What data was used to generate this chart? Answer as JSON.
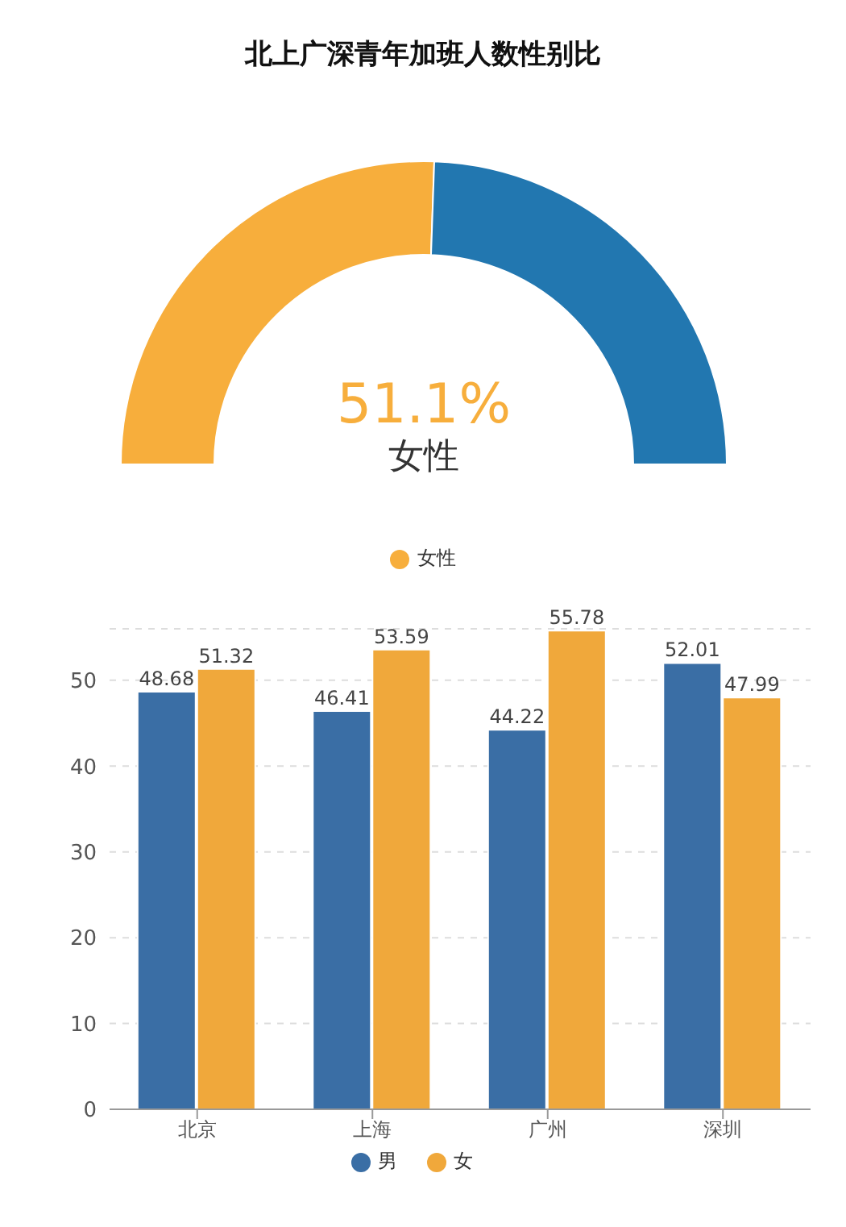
{
  "chart_data": [
    {
      "type": "donut",
      "title": "北上广深青年加班人数性别比",
      "categories": [
        "女性",
        null
      ],
      "values": [
        51.1,
        48.9
      ],
      "colors": [
        "#f7ae3c",
        "#2277b0"
      ],
      "value_labels": [
        "51.1%",
        null
      ],
      "legend": "bottom"
    },
    {
      "type": "bar",
      "categories": [
        "北京",
        "上海",
        "广州",
        "深圳"
      ],
      "series": [
        {
          "name": "男",
          "color": "#3a6ea5",
          "values": [
            48.68,
            46.41,
            44.22,
            52.01
          ]
        },
        {
          "name": "女",
          "color": "#f0a83b",
          "values": [
            51.32,
            53.59,
            55.78,
            47.99
          ]
        }
      ],
      "ylim": [
        0,
        56
      ],
      "yticks": [
        0,
        10,
        20,
        30,
        40,
        50
      ],
      "grid": "y",
      "data_labels": true,
      "legend": "bottom"
    }
  ]
}
